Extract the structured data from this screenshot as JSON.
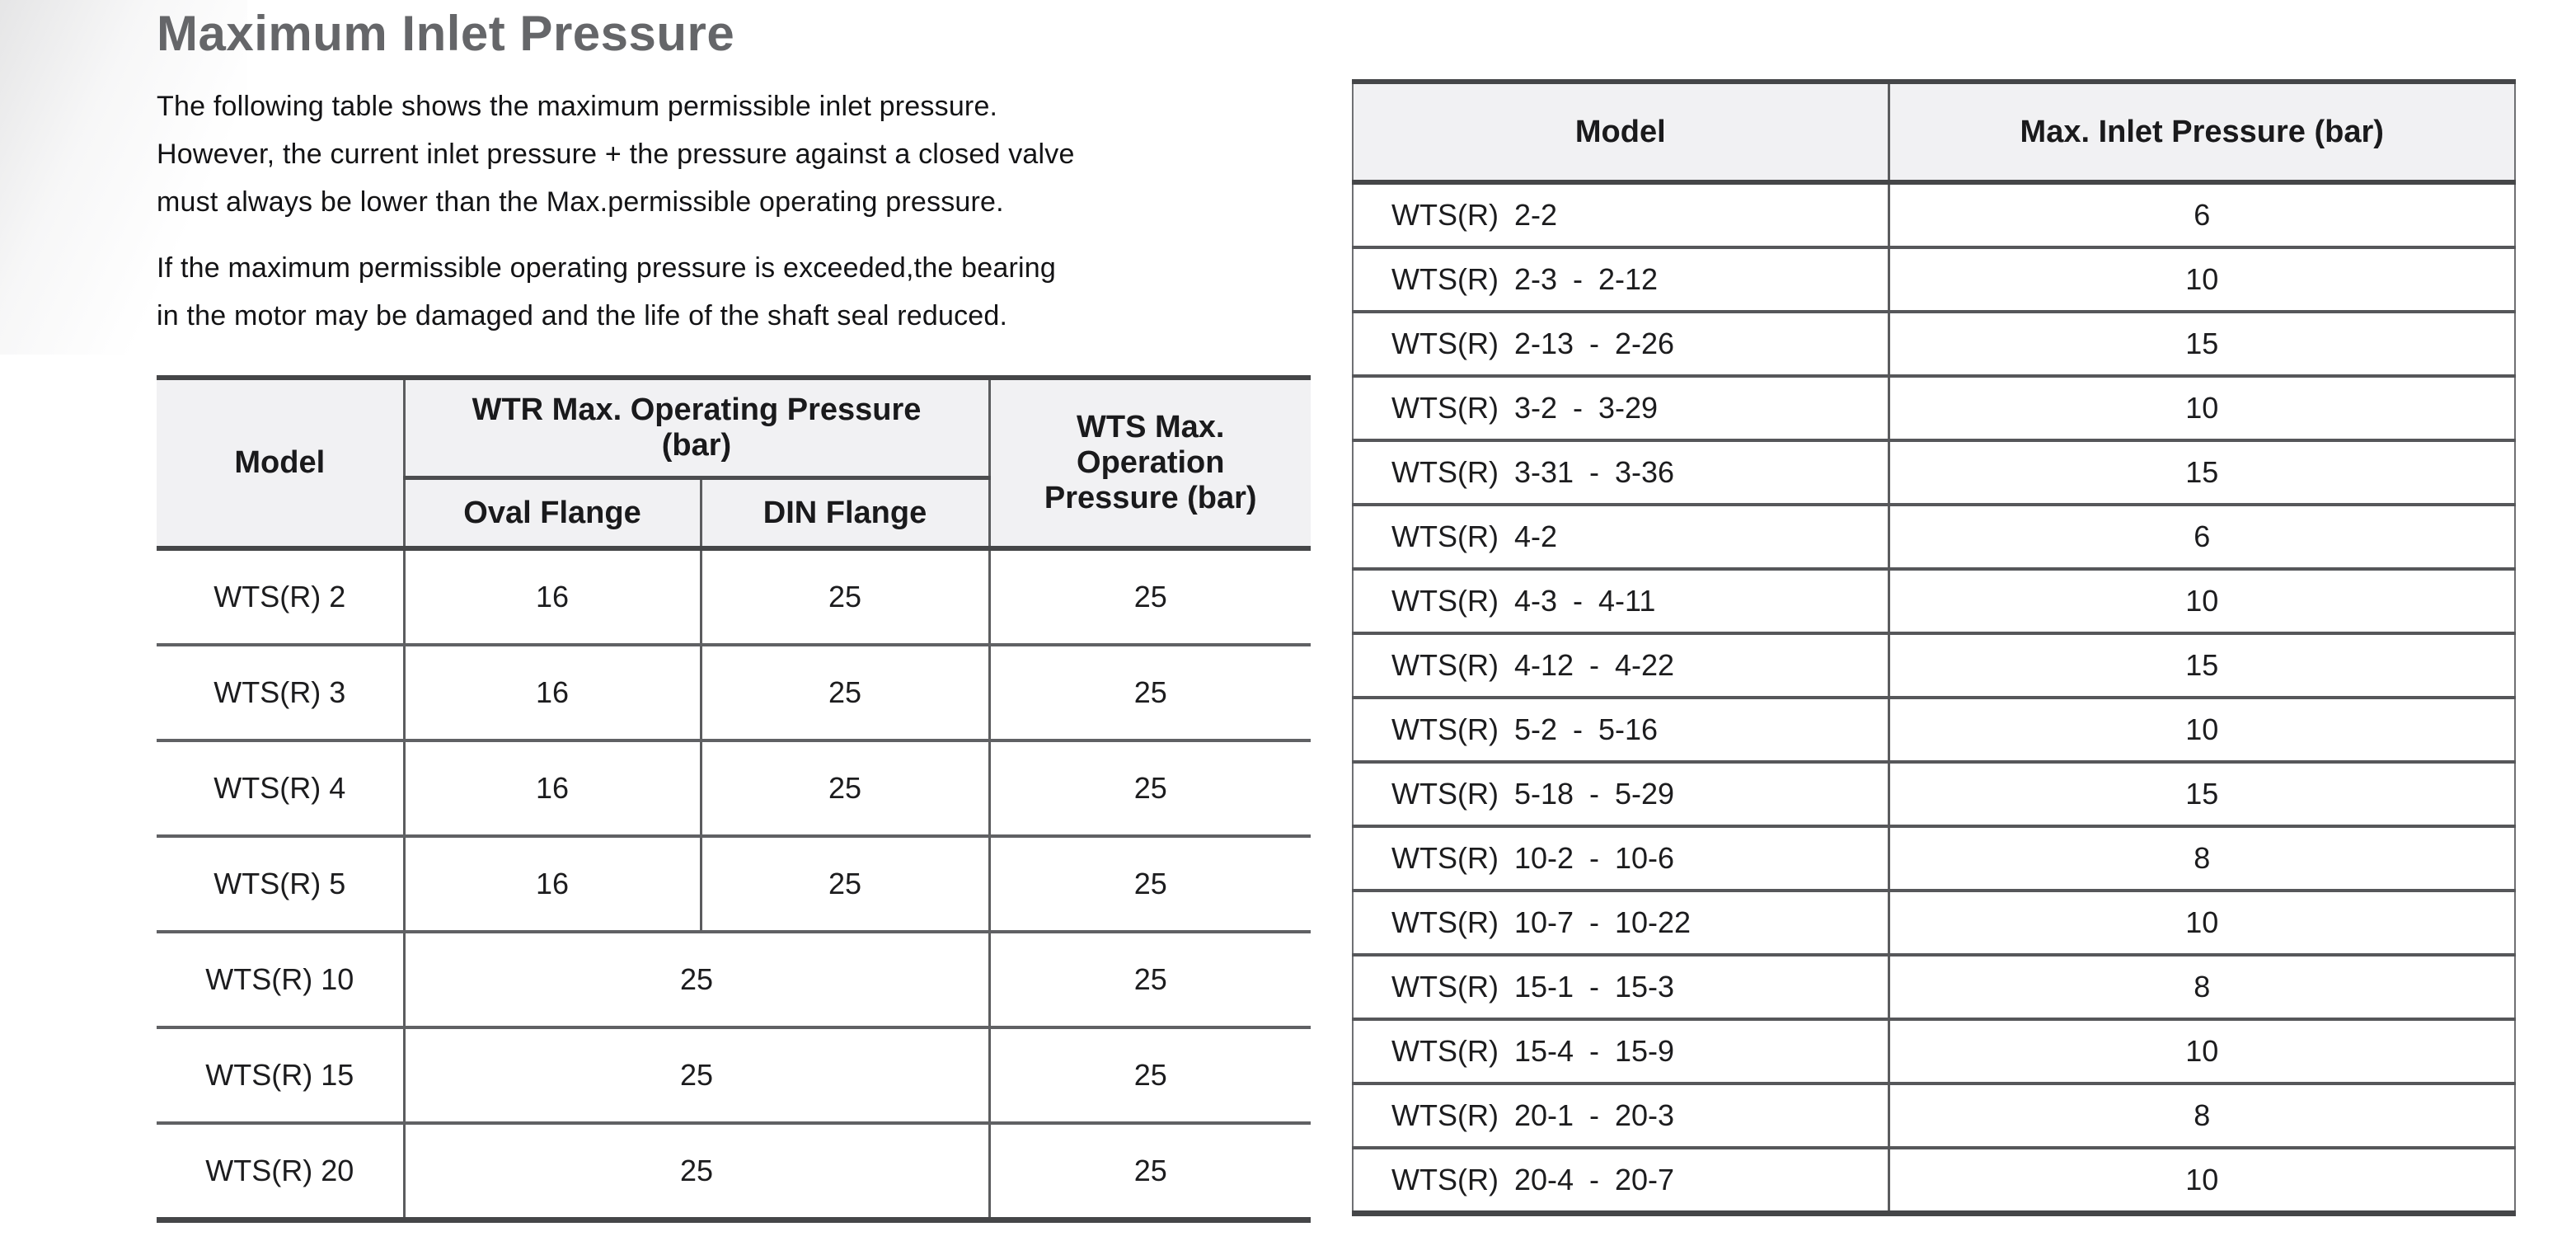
{
  "page": {
    "title": "Maximum Inlet Pressure",
    "paragraph1": "The following table shows the maximum permissible inlet pressure.\nHowever, the current inlet pressure + the pressure against a closed valve\nmust always be lower than the Max.permissible operating pressure.",
    "paragraph2": "If the maximum permissible operating pressure is exceeded,the bearing\nin the motor may be damaged and the life of the shaft seal reduced."
  },
  "left_table": {
    "headers": {
      "model": "Model",
      "wtr_group": "WTR Max. Operating Pressure\n(bar)",
      "oval": "Oval Flange",
      "din": "DIN Flange",
      "wts": "WTS Max.\nOperation\nPressure (bar)"
    },
    "rows": [
      {
        "model": "WTS(R) 2",
        "values": [
          "16",
          "25"
        ],
        "wts": "25"
      },
      {
        "model": "WTS(R) 3",
        "values": [
          "16",
          "25"
        ],
        "wts": "25"
      },
      {
        "model": "WTS(R) 4",
        "values": [
          "16",
          "25"
        ],
        "wts": "25"
      },
      {
        "model": "WTS(R) 5",
        "values": [
          "16",
          "25"
        ],
        "wts": "25"
      },
      {
        "model": "WTS(R) 10",
        "values": [
          "25"
        ],
        "wts": "25"
      },
      {
        "model": "WTS(R) 15",
        "values": [
          "25"
        ],
        "wts": "25"
      },
      {
        "model": "WTS(R) 20",
        "values": [
          "25"
        ],
        "wts": "25"
      }
    ]
  },
  "right_table": {
    "headers": {
      "model": "Model",
      "pressure": "Max. Inlet Pressure (bar)"
    },
    "rows": [
      {
        "model": "WTS(R) 2-2",
        "pressure": "6"
      },
      {
        "model": "WTS(R) 2-3 - 2-12",
        "pressure": "10"
      },
      {
        "model": "WTS(R) 2-13 - 2-26",
        "pressure": "15"
      },
      {
        "model": "WTS(R) 3-2 - 3-29",
        "pressure": "10"
      },
      {
        "model": "WTS(R) 3-31 - 3-36",
        "pressure": "15"
      },
      {
        "model": "WTS(R) 4-2",
        "pressure": "6"
      },
      {
        "model": "WTS(R) 4-3 - 4-11",
        "pressure": "10"
      },
      {
        "model": "WTS(R) 4-12 - 4-22",
        "pressure": "15"
      },
      {
        "model": "WTS(R) 5-2 - 5-16",
        "pressure": "10"
      },
      {
        "model": "WTS(R) 5-18 - 5-29",
        "pressure": "15"
      },
      {
        "model": "WTS(R) 10-2 - 10-6",
        "pressure": "8"
      },
      {
        "model": "WTS(R) 10-7 - 10-22",
        "pressure": "10"
      },
      {
        "model": "WTS(R) 15-1 - 15-3",
        "pressure": "8"
      },
      {
        "model": "WTS(R) 15-4 - 15-9",
        "pressure": "10"
      },
      {
        "model": "WTS(R) 20-1 - 20-3",
        "pressure": "8"
      },
      {
        "model": "WTS(R) 20-4 - 20-7",
        "pressure": "10"
      }
    ]
  },
  "colors": {
    "title_gray": "#656669",
    "text": "#131315",
    "header_bg": "#f1f1f3",
    "border_dark": "#454648",
    "border_gray": "#5b5c5e"
  }
}
